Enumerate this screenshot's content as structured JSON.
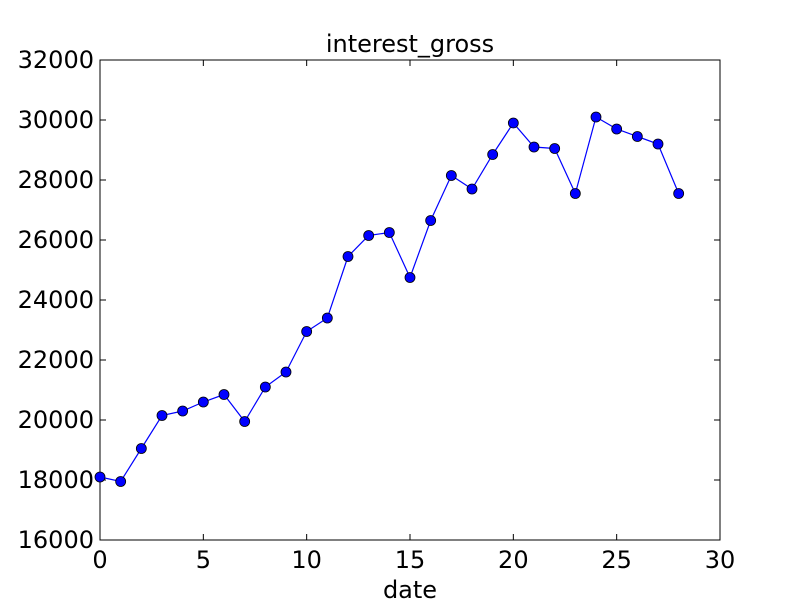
{
  "chart_data": {
    "type": "line",
    "title": "interest_gross",
    "xlabel": "date",
    "ylabel": "",
    "xlim": [
      0,
      30
    ],
    "ylim": [
      16000,
      32000
    ],
    "xticks": [
      0,
      5,
      10,
      15,
      20,
      25,
      30
    ],
    "yticks": [
      16000,
      18000,
      20000,
      22000,
      24000,
      26000,
      28000,
      30000,
      32000
    ],
    "grid": false,
    "legend": "none",
    "series": [
      {
        "color": "#0000ff",
        "marker": "circle",
        "x": [
          0,
          1,
          2,
          3,
          4,
          5,
          6,
          7,
          8,
          9,
          10,
          11,
          12,
          13,
          14,
          15,
          16,
          17,
          18,
          19,
          20,
          21,
          22,
          23,
          24,
          25,
          26,
          27,
          28
        ],
        "values": [
          18100,
          17950,
          19050,
          20150,
          20300,
          20600,
          20850,
          19950,
          21100,
          21600,
          22950,
          23400,
          25450,
          26150,
          26250,
          24750,
          26650,
          28150,
          27700,
          28850,
          29900,
          29100,
          29050,
          27550,
          30100,
          29700,
          29450,
          29200,
          27550
        ]
      }
    ]
  }
}
